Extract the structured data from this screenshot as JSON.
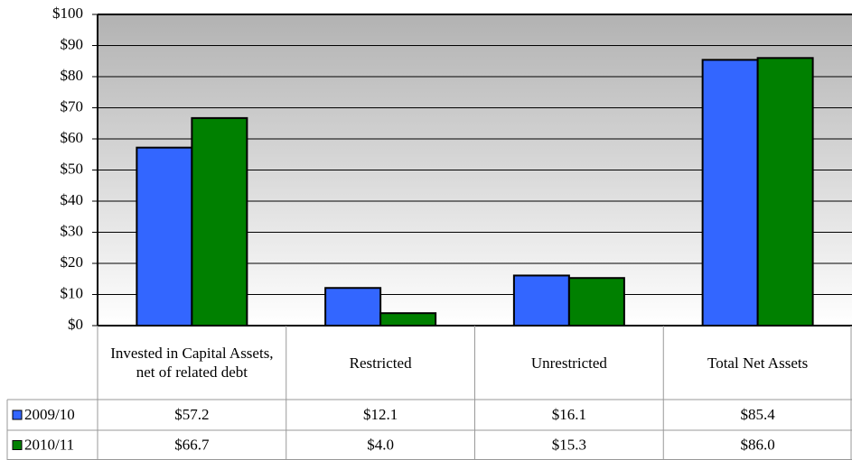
{
  "chart_data": {
    "type": "bar",
    "categories": [
      "Invested in Capital Assets, net of related debt",
      "Restricted",
      "Unrestricted",
      "Total Net Assets"
    ],
    "series": [
      {
        "name": "2009/10",
        "color": "#3366ff",
        "values": [
          57.2,
          12.1,
          16.1,
          85.4
        ],
        "value_labels": [
          "$57.2",
          "$12.1",
          "$16.1",
          "$85.4"
        ]
      },
      {
        "name": "2010/11",
        "color": "#008000",
        "values": [
          66.7,
          4.0,
          15.3,
          86.0
        ],
        "value_labels": [
          "$66.7",
          "$4.0",
          "$15.3",
          "$86.0"
        ]
      }
    ],
    "ylim": [
      0,
      100
    ],
    "yticks": [
      {
        "value": 0,
        "label": "$0"
      },
      {
        "value": 10,
        "label": "$10"
      },
      {
        "value": 20,
        "label": "$20"
      },
      {
        "value": 30,
        "label": "$30"
      },
      {
        "value": 40,
        "label": "$40"
      },
      {
        "value": 50,
        "label": "$50"
      },
      {
        "value": 60,
        "label": "$60"
      },
      {
        "value": 70,
        "label": "$70"
      },
      {
        "value": 80,
        "label": "$80"
      },
      {
        "value": 90,
        "label": "$90"
      },
      {
        "value": 100,
        "label": "$100"
      }
    ],
    "grid": true
  }
}
